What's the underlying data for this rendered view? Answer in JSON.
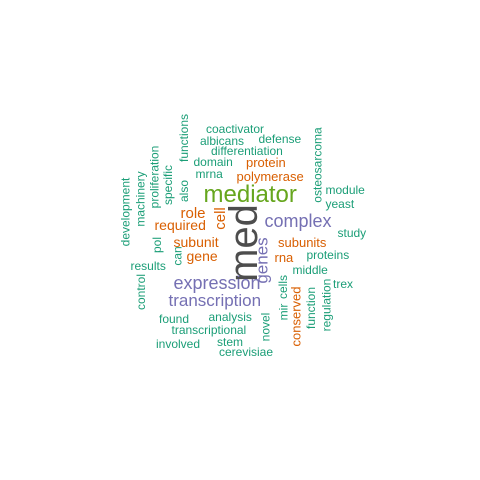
{
  "palette": {
    "gray": "#4d4d4d",
    "green": "#66a61e",
    "purple": "#7570b3",
    "orange": "#d95f02",
    "teal": "#1b9e77"
  },
  "words": [
    {
      "text": "med",
      "color": "gray",
      "size": 40,
      "rotated": true
    },
    {
      "text": "mediator",
      "color": "green",
      "size": 24,
      "rotated": false
    },
    {
      "text": "expression",
      "color": "purple",
      "size": 18,
      "rotated": false
    },
    {
      "text": "complex",
      "color": "purple",
      "size": 18,
      "rotated": false
    },
    {
      "text": "transcription",
      "color": "purple",
      "size": 17,
      "rotated": false
    },
    {
      "text": "genes",
      "color": "purple",
      "size": 17,
      "rotated": true
    },
    {
      "text": "cell",
      "color": "orange",
      "size": 15,
      "rotated": true
    },
    {
      "text": "role",
      "color": "orange",
      "size": 15,
      "rotated": false
    },
    {
      "text": "subunit",
      "color": "orange",
      "size": 14,
      "rotated": false
    },
    {
      "text": "gene",
      "color": "orange",
      "size": 14,
      "rotated": false
    },
    {
      "text": "required",
      "color": "orange",
      "size": 14,
      "rotated": false
    },
    {
      "text": "protein",
      "color": "orange",
      "size": 13,
      "rotated": false
    },
    {
      "text": "polymerase",
      "color": "orange",
      "size": 13,
      "rotated": false
    },
    {
      "text": "subunits",
      "color": "orange",
      "size": 13,
      "rotated": false
    },
    {
      "text": "rna",
      "color": "orange",
      "size": 13,
      "rotated": false
    },
    {
      "text": "conserved",
      "color": "orange",
      "size": 13,
      "rotated": true
    },
    {
      "text": "coactivator",
      "color": "teal",
      "size": 12,
      "rotated": false
    },
    {
      "text": "albicans",
      "color": "teal",
      "size": 12,
      "rotated": false
    },
    {
      "text": "defense",
      "color": "teal",
      "size": 12,
      "rotated": false
    },
    {
      "text": "differentiation",
      "color": "teal",
      "size": 12,
      "rotated": false
    },
    {
      "text": "domain",
      "color": "teal",
      "size": 12,
      "rotated": false
    },
    {
      "text": "mrna",
      "color": "teal",
      "size": 12,
      "rotated": false
    },
    {
      "text": "functions",
      "color": "teal",
      "size": 12,
      "rotated": true
    },
    {
      "text": "osteosarcoma",
      "color": "teal",
      "size": 12,
      "rotated": true
    },
    {
      "text": "module",
      "color": "teal",
      "size": 12,
      "rotated": false
    },
    {
      "text": "yeast",
      "color": "teal",
      "size": 12,
      "rotated": false
    },
    {
      "text": "study",
      "color": "teal",
      "size": 12,
      "rotated": false
    },
    {
      "text": "proteins",
      "color": "teal",
      "size": 12,
      "rotated": false
    },
    {
      "text": "middle",
      "color": "teal",
      "size": 12,
      "rotated": false
    },
    {
      "text": "trex",
      "color": "teal",
      "size": 12,
      "rotated": false
    },
    {
      "text": "mir",
      "color": "teal",
      "size": 12,
      "rotated": true
    },
    {
      "text": "cells",
      "color": "teal",
      "size": 12,
      "rotated": true
    },
    {
      "text": "regulation",
      "color": "teal",
      "size": 12,
      "rotated": true
    },
    {
      "text": "function",
      "color": "teal",
      "size": 12,
      "rotated": true
    },
    {
      "text": "novel",
      "color": "teal",
      "size": 12,
      "rotated": true
    },
    {
      "text": "analysis",
      "color": "teal",
      "size": 12,
      "rotated": false
    },
    {
      "text": "found",
      "color": "teal",
      "size": 12,
      "rotated": false
    },
    {
      "text": "transcriptional",
      "color": "teal",
      "size": 12,
      "rotated": false
    },
    {
      "text": "involved",
      "color": "teal",
      "size": 12,
      "rotated": false
    },
    {
      "text": "stem",
      "color": "teal",
      "size": 12,
      "rotated": false
    },
    {
      "text": "cerevisiae",
      "color": "teal",
      "size": 12,
      "rotated": false
    },
    {
      "text": "results",
      "color": "teal",
      "size": 12,
      "rotated": false
    },
    {
      "text": "control",
      "color": "teal",
      "size": 12,
      "rotated": true
    },
    {
      "text": "development",
      "color": "teal",
      "size": 12,
      "rotated": true
    },
    {
      "text": "machinery",
      "color": "teal",
      "size": 12,
      "rotated": true
    },
    {
      "text": "proliferation",
      "color": "teal",
      "size": 12,
      "rotated": true
    },
    {
      "text": "specific",
      "color": "teal",
      "size": 12,
      "rotated": true
    },
    {
      "text": "also",
      "color": "teal",
      "size": 12,
      "rotated": true
    },
    {
      "text": "pol",
      "color": "teal",
      "size": 12,
      "rotated": true
    },
    {
      "text": "can",
      "color": "teal",
      "size": 12,
      "rotated": true
    }
  ]
}
